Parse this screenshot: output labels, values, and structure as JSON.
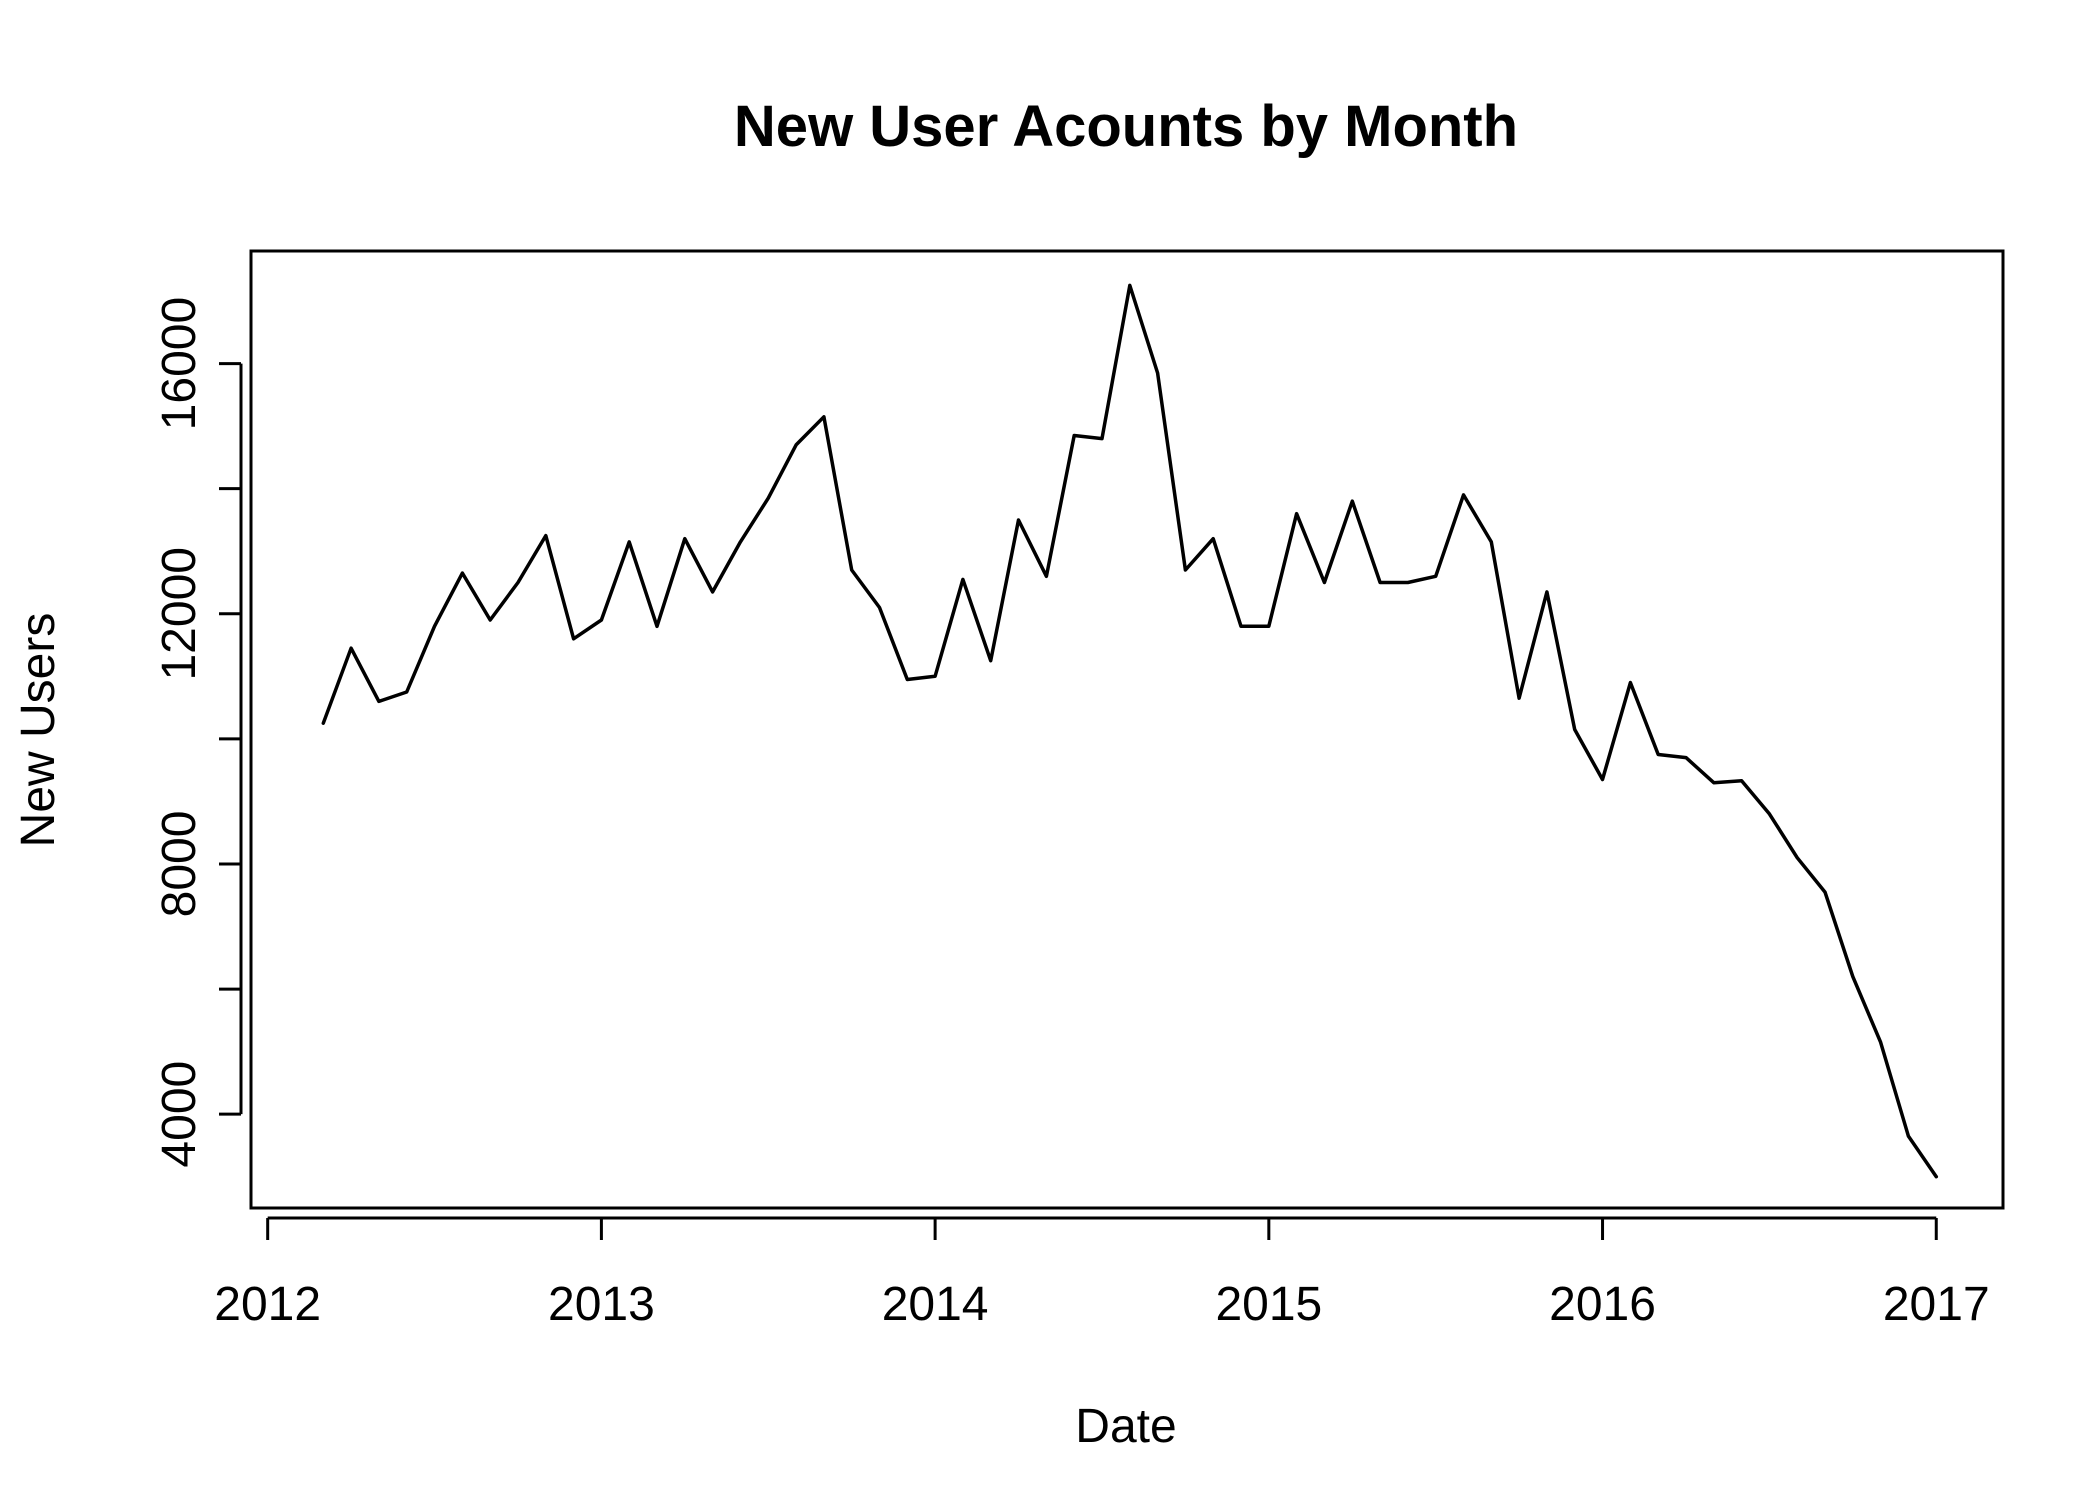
{
  "chart_data": {
    "type": "line",
    "title": "New User Acounts by Month",
    "xlabel": "Date",
    "ylabel": "New Users",
    "xlim": [
      2011.95,
      2017.2
    ],
    "ylim": [
      2500,
      17800
    ],
    "x_ticks": [
      "2012",
      "2013",
      "2014",
      "2015",
      "2016",
      "2017"
    ],
    "y_ticks": [
      "4000",
      "8000",
      "12000",
      "16000"
    ],
    "grid": false,
    "line_color": "#000000",
    "series": [
      {
        "x": [
          "2012-03",
          "2012-04",
          "2012-05",
          "2012-06",
          "2012-07",
          "2012-08",
          "2012-09",
          "2012-10",
          "2012-11",
          "2012-12",
          "2013-01",
          "2013-02",
          "2013-03",
          "2013-04",
          "2013-05",
          "2013-06",
          "2013-07",
          "2013-08",
          "2013-09",
          "2013-10",
          "2013-11",
          "2013-12",
          "2014-01",
          "2014-02",
          "2014-03",
          "2014-04",
          "2014-05",
          "2014-06",
          "2014-07",
          "2014-08",
          "2014-09",
          "2014-10",
          "2014-11",
          "2014-12",
          "2015-01",
          "2015-02",
          "2015-03",
          "2015-04",
          "2015-05",
          "2015-06",
          "2015-07",
          "2015-08",
          "2015-09",
          "2015-10",
          "2015-11",
          "2015-12",
          "2016-01",
          "2016-02",
          "2016-03",
          "2016-04",
          "2016-05",
          "2016-06",
          "2016-07",
          "2016-08",
          "2016-09",
          "2016-10",
          "2016-11",
          "2016-12",
          "2017-01"
        ],
        "values": [
          10250,
          11450,
          10600,
          10750,
          11800,
          12650,
          11900,
          12500,
          13250,
          11600,
          11900,
          13150,
          11800,
          13200,
          12350,
          13150,
          13850,
          14700,
          15150,
          12700,
          12100,
          10950,
          11000,
          12550,
          11250,
          13500,
          12600,
          14850,
          14800,
          17250,
          15850,
          12700,
          13200,
          11800,
          11800,
          13600,
          12500,
          13800,
          12500,
          12500,
          12600,
          13900,
          13150,
          10650,
          12350,
          10150,
          9350,
          10900,
          9750,
          9700,
          9300,
          9330,
          8800,
          8100,
          7550,
          6200,
          5150,
          3650,
          3000
        ]
      }
    ]
  }
}
